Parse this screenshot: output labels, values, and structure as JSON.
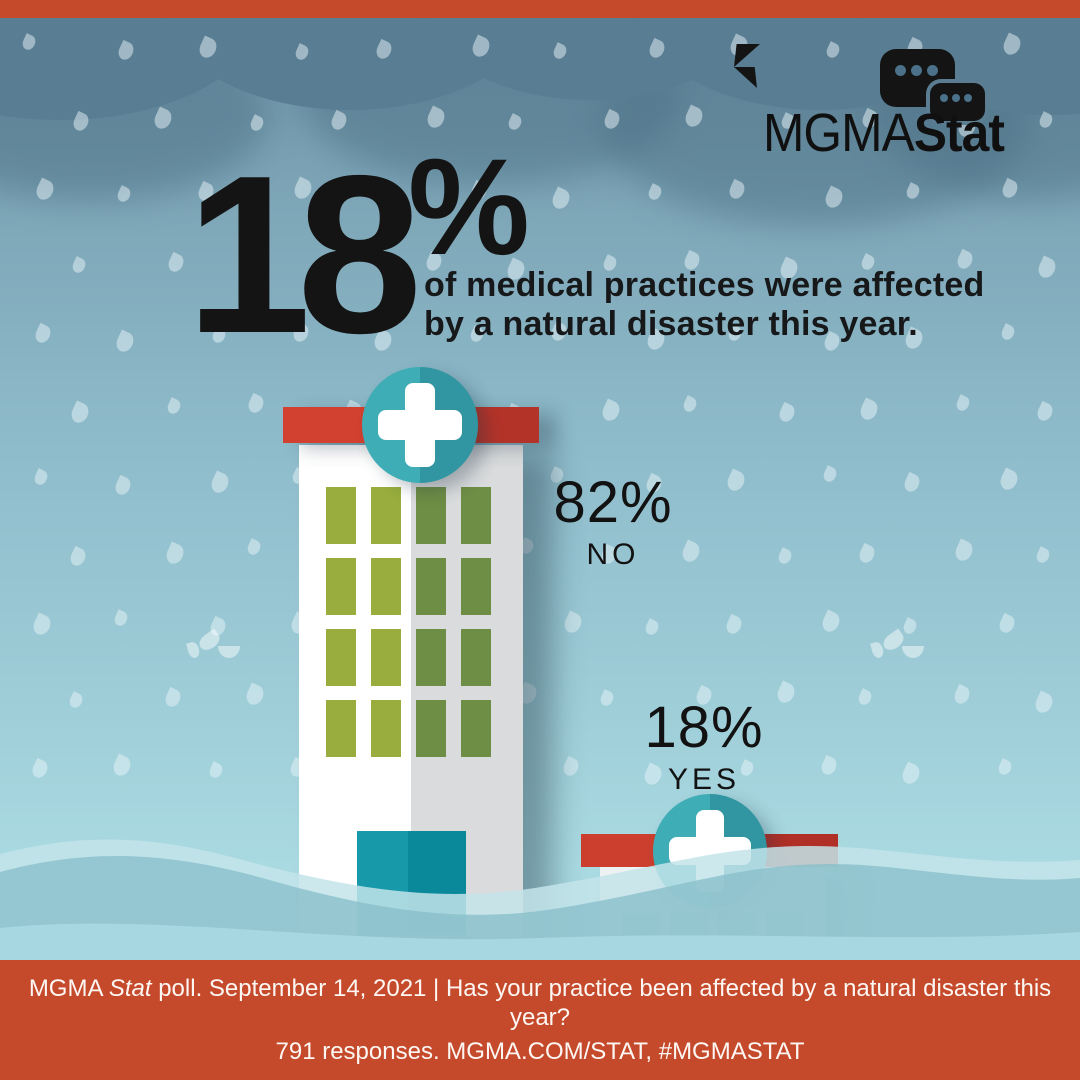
{
  "logo": {
    "wordmark_light": "MGMA",
    "wordmark_bold": "Stat"
  },
  "headline": {
    "big_number": "18",
    "percent_sign": "%",
    "sub_line1": "of medical practices were affected",
    "sub_line2": "by a natural disaster this year."
  },
  "results": {
    "no": {
      "pct": "82%",
      "label": "NO"
    },
    "yes": {
      "pct": "18%",
      "label": "YES"
    }
  },
  "footer": {
    "brand": "MGMA",
    "brand_italic": "Stat",
    "line1_rest": "poll. September 14, 2021  |  Has your practice been affected by a natural disaster this year?",
    "line2": "791 responses. MGMA.COM/STAT, #MGMASTAT"
  },
  "colors": {
    "accent_orange": "#c54a2c",
    "roof_red": "#cf3c2d",
    "badge_teal": "#2aa2ae",
    "window_green_light": "#98ad3d",
    "window_green_dark": "#6e8d45",
    "sky_top": "#6e92a7",
    "sky_bottom": "#aedce3",
    "text_black": "#141414",
    "text_white": "#ffffff"
  },
  "chart_data": {
    "type": "pie",
    "title": "Has your practice been affected by a natural disaster this year?",
    "categories": [
      "YES",
      "NO"
    ],
    "values": [
      18,
      82
    ],
    "unit": "%",
    "annotation": "18% of medical practices were affected by a natural disaster this year.",
    "source": "MGMA Stat poll. September 14, 2021. 791 responses. MGMA.COM/STAT, #MGMASTAT"
  }
}
